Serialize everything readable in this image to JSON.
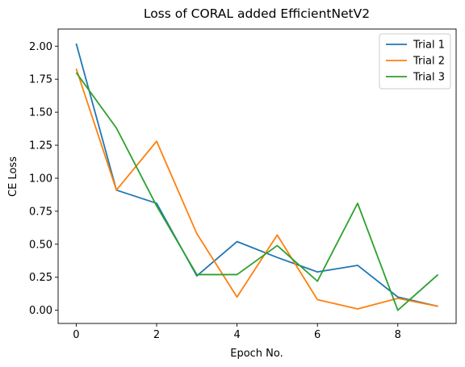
{
  "chart_data": {
    "type": "line",
    "title": "Loss of CORAL added EfficientNetV2",
    "xlabel": "Epoch No.",
    "ylabel": "CE Loss",
    "x": [
      0,
      1,
      2,
      3,
      4,
      5,
      6,
      7,
      8,
      9
    ],
    "xlim": [
      -0.45,
      9.45
    ],
    "ylim": [
      -0.1,
      2.13
    ],
    "xticks": [
      0,
      2,
      4,
      6,
      8
    ],
    "yticks": [
      0.0,
      0.25,
      0.5,
      0.75,
      1.0,
      1.25,
      1.5,
      1.75,
      2.0
    ],
    "xtick_labels": [
      "0",
      "2",
      "4",
      "6",
      "8"
    ],
    "ytick_labels": [
      "0.00",
      "0.25",
      "0.50",
      "0.75",
      "1.00",
      "1.25",
      "1.50",
      "1.75",
      "2.00"
    ],
    "grid": false,
    "legend_position": "top-right",
    "series": [
      {
        "name": "Trial 1",
        "color": "#1f77b4",
        "values": [
          2.02,
          0.91,
          0.81,
          0.26,
          0.52,
          0.4,
          0.29,
          0.34,
          0.1,
          0.03
        ]
      },
      {
        "name": "Trial 2",
        "color": "#ff7f0e",
        "values": [
          1.83,
          0.91,
          1.28,
          0.58,
          0.1,
          0.57,
          0.08,
          0.01,
          0.09,
          0.03
        ]
      },
      {
        "name": "Trial 3",
        "color": "#2ca02c",
        "values": [
          1.8,
          1.38,
          0.79,
          0.27,
          0.27,
          0.49,
          0.22,
          0.81,
          0.0,
          0.27
        ]
      }
    ]
  }
}
